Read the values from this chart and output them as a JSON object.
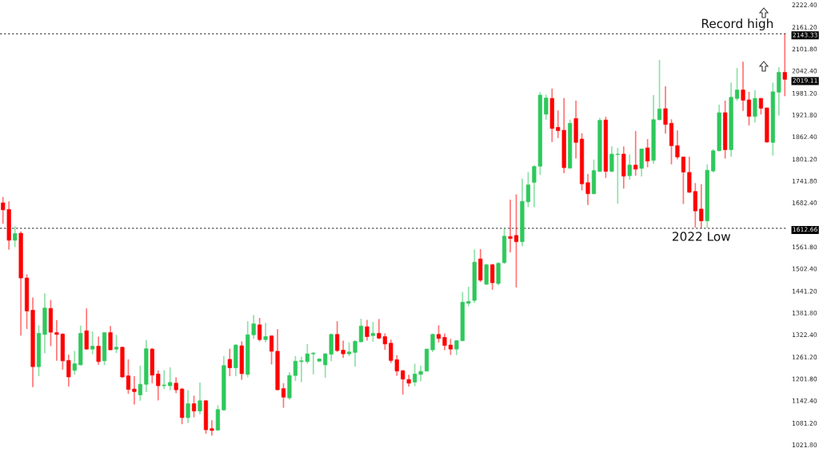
{
  "chart_data": {
    "type": "candlestick",
    "categories": [
      null,
      null,
      null,
      null,
      null,
      null,
      null,
      null,
      null,
      null,
      null,
      null,
      null,
      null,
      null,
      null,
      null,
      null,
      null,
      null,
      null,
      null,
      null,
      null,
      null,
      null,
      null,
      null,
      null,
      null,
      null,
      null,
      null,
      null,
      null,
      null,
      null,
      null,
      null,
      null,
      null,
      null,
      null,
      null,
      null,
      null,
      null,
      null,
      null,
      null,
      null,
      null,
      null,
      null,
      null,
      null,
      null,
      null,
      null,
      null,
      null,
      null,
      null,
      null,
      null,
      null,
      null,
      null,
      null,
      null,
      null,
      null,
      null,
      null,
      null,
      null,
      null,
      null,
      null,
      null,
      null,
      null,
      null,
      null,
      null,
      null,
      null,
      null,
      null,
      null,
      null,
      null,
      null,
      null,
      null,
      null,
      null,
      null,
      null,
      null,
      null,
      null,
      null,
      null,
      null,
      null,
      null,
      null,
      null,
      null,
      null,
      null,
      null,
      null,
      null,
      null,
      null,
      null,
      null,
      null,
      null,
      null,
      null,
      null,
      null,
      null,
      null,
      null,
      null,
      null,
      null,
      null
    ],
    "ohlc": [
      [
        1682,
        1698,
        1625,
        1663
      ],
      [
        1664,
        1686,
        1554,
        1580
      ],
      [
        1580,
        1618,
        1561,
        1598
      ],
      [
        1599,
        1604,
        1320,
        1477
      ],
      [
        1477,
        1487,
        1338,
        1387
      ],
      [
        1389,
        1424,
        1179,
        1235
      ],
      [
        1235,
        1348,
        1209,
        1326
      ],
      [
        1323,
        1435,
        1272,
        1395
      ],
      [
        1394,
        1417,
        1291,
        1329
      ],
      [
        1328,
        1362,
        1251,
        1323
      ],
      [
        1324,
        1326,
        1227,
        1251
      ],
      [
        1252,
        1268,
        1181,
        1207
      ],
      [
        1225,
        1278,
        1213,
        1243
      ],
      [
        1240,
        1347,
        1238,
        1326
      ],
      [
        1333,
        1394,
        1281,
        1283
      ],
      [
        1283,
        1331,
        1269,
        1291
      ],
      [
        1291,
        1317,
        1240,
        1249
      ],
      [
        1251,
        1328,
        1239,
        1328
      ],
      [
        1328,
        1346,
        1280,
        1281
      ],
      [
        1283,
        1322,
        1272,
        1288
      ],
      [
        1288,
        1290,
        1205,
        1207
      ],
      [
        1210,
        1255,
        1161,
        1173
      ],
      [
        1174,
        1209,
        1132,
        1167
      ],
      [
        1158,
        1238,
        1142,
        1187
      ],
      [
        1187,
        1308,
        1166,
        1284
      ],
      [
        1283,
        1286,
        1190,
        1212
      ],
      [
        1215,
        1225,
        1143,
        1183
      ],
      [
        1183,
        1225,
        1174,
        1185
      ],
      [
        1183,
        1233,
        1171,
        1192
      ],
      [
        1190,
        1206,
        1163,
        1172
      ],
      [
        1174,
        1177,
        1078,
        1096
      ],
      [
        1096,
        1171,
        1081,
        1134
      ],
      [
        1134,
        1156,
        1097,
        1114
      ],
      [
        1114,
        1192,
        1105,
        1142
      ],
      [
        1142,
        1144,
        1052,
        1063
      ],
      [
        1066,
        1089,
        1047,
        1061
      ],
      [
        1062,
        1130,
        1060,
        1118
      ],
      [
        1117,
        1264,
        1115,
        1238
      ],
      [
        1255,
        1284,
        1209,
        1232
      ],
      [
        1232,
        1297,
        1209,
        1294
      ],
      [
        1292,
        1304,
        1199,
        1216
      ],
      [
        1214,
        1359,
        1206,
        1322
      ],
      [
        1322,
        1376,
        1311,
        1352
      ],
      [
        1349,
        1368,
        1304,
        1309
      ],
      [
        1309,
        1354,
        1301,
        1317
      ],
      [
        1319,
        1320,
        1241,
        1277
      ],
      [
        1277,
        1337,
        1171,
        1172
      ],
      [
        1175,
        1190,
        1123,
        1152
      ],
      [
        1150,
        1220,
        1145,
        1211
      ],
      [
        1211,
        1264,
        1196,
        1250
      ],
      [
        1249,
        1262,
        1193,
        1251
      ],
      [
        1249,
        1297,
        1243,
        1270
      ],
      [
        1270,
        1275,
        1214,
        1272
      ],
      [
        1250,
        1258,
        1248,
        1256
      ],
      [
        1240,
        1272,
        1205,
        1270
      ],
      [
        1269,
        1326,
        1250,
        1323
      ],
      [
        1323,
        1359,
        1275,
        1279
      ],
      [
        1280,
        1306,
        1259,
        1270
      ],
      [
        1270,
        1301,
        1264,
        1275
      ],
      [
        1274,
        1307,
        1235,
        1304
      ],
      [
        1303,
        1366,
        1301,
        1346
      ],
      [
        1344,
        1363,
        1306,
        1317
      ],
      [
        1320,
        1357,
        1303,
        1326
      ],
      [
        1326,
        1365,
        1310,
        1313
      ],
      [
        1317,
        1326,
        1281,
        1297
      ],
      [
        1299,
        1309,
        1245,
        1252
      ],
      [
        1254,
        1266,
        1210,
        1223
      ],
      [
        1224,
        1226,
        1159,
        1201
      ],
      [
        1200,
        1213,
        1181,
        1190
      ],
      [
        1193,
        1243,
        1182,
        1215
      ],
      [
        1214,
        1238,
        1195,
        1222
      ],
      [
        1223,
        1284,
        1222,
        1283
      ],
      [
        1281,
        1326,
        1275,
        1323
      ],
      [
        1323,
        1348,
        1301,
        1312
      ],
      [
        1315,
        1326,
        1280,
        1293
      ],
      [
        1294,
        1311,
        1267,
        1283
      ],
      [
        1283,
        1307,
        1267,
        1306
      ],
      [
        1306,
        1439,
        1304,
        1411
      ],
      [
        1408,
        1453,
        1400,
        1413
      ],
      [
        1416,
        1555,
        1409,
        1520
      ],
      [
        1529,
        1556,
        1466,
        1471
      ],
      [
        1460,
        1516,
        1458,
        1513
      ],
      [
        1513,
        1516,
        1445,
        1464
      ],
      [
        1462,
        1520,
        1457,
        1517
      ],
      [
        1519,
        1612,
        1515,
        1591
      ],
      [
        1590,
        1691,
        1547,
        1585
      ],
      [
        1593,
        1705,
        1451,
        1576
      ],
      [
        1576,
        1748,
        1564,
        1686
      ],
      [
        1685,
        1766,
        1670,
        1731
      ],
      [
        1738,
        1785,
        1670,
        1781
      ],
      [
        1782,
        1984,
        1758,
        1976
      ],
      [
        1924,
        1977,
        1909,
        1968
      ],
      [
        1967,
        1994,
        1848,
        1885
      ],
      [
        1888,
        1934,
        1859,
        1879
      ],
      [
        1880,
        1968,
        1763,
        1778
      ],
      [
        1777,
        1909,
        1775,
        1899
      ],
      [
        1912,
        1961,
        1803,
        1847
      ],
      [
        1856,
        1872,
        1716,
        1734
      ],
      [
        1737,
        1761,
        1676,
        1707
      ],
      [
        1707,
        1800,
        1705,
        1770
      ],
      [
        1768,
        1914,
        1766,
        1907
      ],
      [
        1908,
        1917,
        1750,
        1768
      ],
      [
        1768,
        1836,
        1766,
        1815
      ],
      [
        1814,
        1832,
        1680,
        1815
      ],
      [
        1815,
        1836,
        1721,
        1755
      ],
      [
        1756,
        1814,
        1745,
        1785
      ],
      [
        1785,
        1878,
        1756,
        1774
      ],
      [
        1776,
        1830,
        1754,
        1829
      ],
      [
        1832,
        1856,
        1779,
        1796
      ],
      [
        1798,
        1976,
        1789,
        1909
      ],
      [
        1909,
        2072,
        1907,
        1938
      ],
      [
        1939,
        2000,
        1871,
        1896
      ],
      [
        1899,
        1910,
        1787,
        1838
      ],
      [
        1838,
        1880,
        1801,
        1807
      ],
      [
        1807,
        1808,
        1679,
        1766
      ],
      [
        1765,
        1808,
        1709,
        1711
      ],
      [
        1713,
        1736,
        1615,
        1660
      ],
      [
        1665,
        1733,
        1613,
        1633
      ],
      [
        1633,
        1787,
        1614,
        1771
      ],
      [
        1769,
        1829,
        1765,
        1824
      ],
      [
        1824,
        1950,
        1823,
        1928
      ],
      [
        1928,
        1961,
        1803,
        1827
      ],
      [
        1827,
        2010,
        1808,
        1970
      ],
      [
        1967,
        2050,
        1960,
        1990
      ],
      [
        1990,
        2067,
        1933,
        1962
      ],
      [
        1963,
        1985,
        1893,
        1918
      ],
      [
        1918,
        1989,
        1901,
        1967
      ],
      [
        1967,
        1968,
        1923,
        1940
      ],
      [
        1941,
        1942,
        1846,
        1848
      ],
      [
        1847,
        2010,
        1811,
        1985
      ],
      [
        1984,
        2052,
        1920,
        2038
      ],
      [
        2038,
        2143.33,
        1973,
        2019.11
      ]
    ],
    "colors": [
      "#ff0000",
      "#ff0000",
      "#2ec85c",
      "#ff0000",
      "#ff0000",
      "#ff0000",
      "#2ec85c",
      "#2ec85c",
      "#ff0000",
      "#ff0000",
      "#ff0000",
      "#ff0000",
      "#2ec85c",
      "#2ec85c",
      "#ff0000",
      "#2ec85c",
      "#ff0000",
      "#2ec85c",
      "#ff0000",
      "#2ec85c",
      "#ff0000",
      "#ff0000",
      "#ff0000",
      "#2ec85c",
      "#2ec85c",
      "#ff0000",
      "#ff0000",
      "#2ec85c",
      "#2ec85c",
      "#ff0000",
      "#ff0000",
      "#2ec85c",
      "#ff0000",
      "#2ec85c",
      "#ff0000",
      "#ff0000",
      "#2ec85c",
      "#2ec85c",
      "#ff0000",
      "#2ec85c",
      "#ff0000",
      "#2ec85c",
      "#2ec85c",
      "#ff0000",
      "#2ec85c",
      "#ff0000",
      "#ff0000",
      "#ff0000",
      "#2ec85c",
      "#2ec85c",
      "#2ec85c",
      "#2ec85c",
      "#2ec85c",
      "#2ec85c",
      "#2ec85c",
      "#2ec85c",
      "#ff0000",
      "#ff0000",
      "#2ec85c",
      "#2ec85c",
      "#2ec85c",
      "#ff0000",
      "#2ec85c",
      "#ff0000",
      "#ff0000",
      "#ff0000",
      "#ff0000",
      "#ff0000",
      "#ff0000",
      "#2ec85c",
      "#2ec85c",
      "#2ec85c",
      "#2ec85c",
      "#ff0000",
      "#ff0000",
      "#ff0000",
      "#2ec85c",
      "#2ec85c",
      "#2ec85c",
      "#2ec85c",
      "#ff0000",
      "#2ec85c",
      "#ff0000",
      "#2ec85c",
      "#2ec85c",
      "#ff0000",
      "#ff0000",
      "#2ec85c",
      "#2ec85c",
      "#2ec85c",
      "#2ec85c",
      "#2ec85c",
      "#ff0000",
      "#ff0000",
      "#ff0000",
      "#2ec85c",
      "#ff0000",
      "#ff0000",
      "#ff0000",
      "#2ec85c",
      "#2ec85c",
      "#ff0000",
      "#2ec85c",
      "#2ec85c",
      "#ff0000",
      "#2ec85c",
      "#ff0000",
      "#2ec85c",
      "#ff0000",
      "#2ec85c",
      "#2ec85c",
      "#ff0000",
      "#ff0000",
      "#ff0000",
      "#ff0000",
      "#ff0000",
      "#ff0000",
      "#ff0000",
      "#2ec85c",
      "#2ec85c",
      "#2ec85c",
      "#ff0000",
      "#2ec85c",
      "#2ec85c",
      "#ff0000",
      "#ff0000",
      "#2ec85c",
      "#ff0000",
      "#ff0000",
      "#2ec85c",
      "#2ec85c",
      "#ff0000"
    ],
    "ylim": [
      1021.8,
      2222.4
    ],
    "yticks": [
      {
        "value": 1021.8,
        "label": "1021.80"
      },
      {
        "value": 1081.2,
        "label": "1081.20"
      },
      {
        "value": 1142.4,
        "label": "1142.40"
      },
      {
        "value": 1201.8,
        "label": "1201.80"
      },
      {
        "value": 1261.2,
        "label": "1261.20"
      },
      {
        "value": 1322.4,
        "label": "1322.40"
      },
      {
        "value": 1381.8,
        "label": "1381.80"
      },
      {
        "value": 1441.2,
        "label": "1441.20"
      },
      {
        "value": 1502.4,
        "label": "1502.40"
      },
      {
        "value": 1561.8,
        "label": "1561.80"
      },
      {
        "value": 1682.4,
        "label": "1682.40"
      },
      {
        "value": 1741.8,
        "label": "1741.80"
      },
      {
        "value": 1801.2,
        "label": "1801.20"
      },
      {
        "value": 1862.4,
        "label": "1862.40"
      },
      {
        "value": 1921.8,
        "label": "1921.80"
      },
      {
        "value": 1981.2,
        "label": "1981.20"
      },
      {
        "value": 2042.4,
        "label": "2042.40"
      },
      {
        "value": 2101.8,
        "label": "2101.80"
      },
      {
        "value": 2161.2,
        "label": "2161.20"
      },
      {
        "value": 2222.4,
        "label": "2222.40"
      }
    ],
    "tick_labels": "y",
    "ref_lines": [
      {
        "axis": "y",
        "value": 2143.33,
        "label": "Record high",
        "color": "#555555",
        "line_style": "dashed"
      },
      {
        "axis": "y",
        "value": 1612.66,
        "label": "2022 Low",
        "color": "#555555",
        "line_style": "dashed"
      }
    ],
    "annotations": [
      "2143.33",
      "1612.66",
      "2019.11"
    ]
  }
}
